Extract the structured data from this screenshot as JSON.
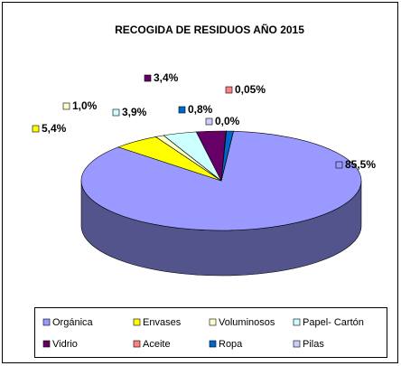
{
  "chart_data": {
    "type": "pie3d",
    "title": "RECOGIDA DE RESIDUOS AÑO 2015",
    "series": [
      {
        "name": "Orgánica",
        "color": "#9999ff"
      },
      {
        "name": "Envases",
        "color": "#ffff00"
      },
      {
        "name": "Voluminosos",
        "color": "#ffffcc"
      },
      {
        "name": "Papel- Cartón",
        "color": "#ccffff"
      },
      {
        "name": "Vidrio",
        "color": "#660066"
      },
      {
        "name": "Aceite",
        "color": "#ff8080"
      },
      {
        "name": "Ropa",
        "color": "#0066cc"
      },
      {
        "name": "Pilas",
        "color": "#ccccff"
      }
    ],
    "values": [
      85.5,
      5.4,
      1.0,
      3.9,
      3.4,
      0.05,
      0.8,
      0.0
    ],
    "value_labels": [
      "85,5%",
      "5,4%",
      "1,0%",
      "3,9%",
      "3,4%",
      "0,05%",
      "0,8%",
      "0,0%"
    ],
    "legend": "bottom"
  }
}
